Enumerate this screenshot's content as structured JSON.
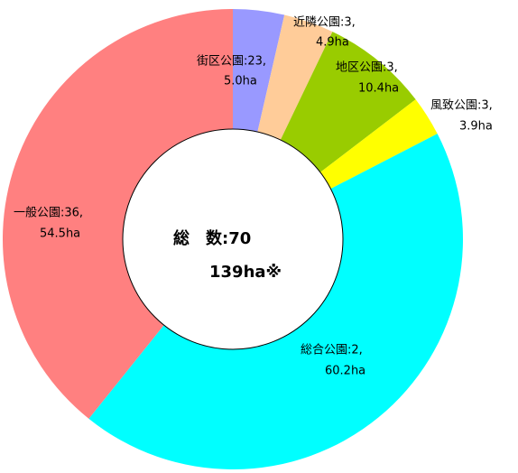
{
  "chart_data": {
    "type": "donut",
    "categories": [
      "街区公園:23,",
      "近隣公園:3,",
      "地区公園:3,",
      "風致公園:3,",
      "総合公園:2,",
      "一般公園:36,"
    ],
    "values": [
      5.0,
      4.9,
      10.4,
      3.9,
      60.2,
      54.5
    ],
    "value_labels": [
      "5.0ha",
      "4.9ha",
      "10.4ha",
      "3.9ha",
      "60.2ha",
      "54.5ha"
    ],
    "colors": [
      "#9999ff",
      "#ffcc99",
      "#99cc00",
      "#ffff00",
      "#00ffff",
      "#ff8080"
    ],
    "center_label": [
      "総　数:70",
      "139ha※"
    ]
  }
}
